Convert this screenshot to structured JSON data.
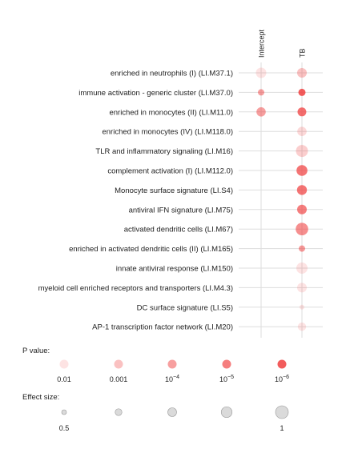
{
  "chart_data": {
    "type": "dot-matrix",
    "columns": [
      "Intercept",
      "TB"
    ],
    "rows": [
      "enriched in neutrophils (I) (LI.M37.1)",
      "immune activation - generic cluster (LI.M37.0)",
      "enriched in monocytes (II) (LI.M11.0)",
      "enriched in monocytes (IV) (LI.M118.0)",
      "TLR and inflammatory signaling (LI.M16)",
      "complement activation (I) (LI.M112.0)",
      "Monocyte surface signature (LI.S4)",
      "antiviral IFN signature (LI.M75)",
      "activated dendritic cells (LI.M67)",
      "enriched in activated dendritic cells (II) (LI.M165)",
      "innate antiviral response (LI.M150)",
      "myeloid cell enriched receptors and transporters (LI.M4.3)",
      "DC surface signature (LI.S5)",
      "AP-1 transcription factor network (LI.M20)"
    ],
    "points": [
      {
        "row": 0,
        "col": 0,
        "effect": 0.85,
        "neglog10p": 2.0
      },
      {
        "row": 0,
        "col": 1,
        "effect": 0.8,
        "neglog10p": 3.0
      },
      {
        "row": 1,
        "col": 0,
        "effect": 0.6,
        "neglog10p": 4.0
      },
      {
        "row": 1,
        "col": 1,
        "effect": 0.65,
        "neglog10p": 6.0
      },
      {
        "row": 2,
        "col": 0,
        "effect": 0.78,
        "neglog10p": 4.0
      },
      {
        "row": 2,
        "col": 1,
        "effect": 0.75,
        "neglog10p": 5.5
      },
      {
        "row": 3,
        "col": 1,
        "effect": 0.78,
        "neglog10p": 2.3
      },
      {
        "row": 4,
        "col": 1,
        "effect": 0.95,
        "neglog10p": 2.6
      },
      {
        "row": 5,
        "col": 1,
        "effect": 0.88,
        "neglog10p": 5.3
      },
      {
        "row": 6,
        "col": 1,
        "effect": 0.82,
        "neglog10p": 5.3
      },
      {
        "row": 7,
        "col": 1,
        "effect": 0.8,
        "neglog10p": 5.0
      },
      {
        "row": 8,
        "col": 1,
        "effect": 0.98,
        "neglog10p": 4.5
      },
      {
        "row": 9,
        "col": 1,
        "effect": 0.6,
        "neglog10p": 4.2
      },
      {
        "row": 10,
        "col": 1,
        "effect": 0.9,
        "neglog10p": 2.0
      },
      {
        "row": 11,
        "col": 1,
        "effect": 0.8,
        "neglog10p": 2.0
      },
      {
        "row": 12,
        "col": 1,
        "effect": 0.5,
        "neglog10p": 2.0
      },
      {
        "row": 13,
        "col": 1,
        "effect": 0.72,
        "neglog10p": 2.0
      }
    ],
    "legend_pvalue": {
      "title": "P value:",
      "labels_base": [
        "0.01",
        "0.001",
        "10",
        "10",
        "10"
      ],
      "labels_exp": [
        "",
        "",
        "−4",
        "−5",
        "−6"
      ],
      "neglog10p": [
        2,
        3,
        4,
        5,
        6
      ]
    },
    "legend_effect": {
      "title": "Effect size:",
      "effects": [
        0.5,
        0.625,
        0.75,
        0.875,
        1.0
      ],
      "labels": [
        "0.5",
        "",
        "",
        "",
        "1"
      ]
    },
    "colors": {
      "dot": "#f04040",
      "effect_dot": "#bbbbbb",
      "grid": "#dddddd"
    }
  }
}
